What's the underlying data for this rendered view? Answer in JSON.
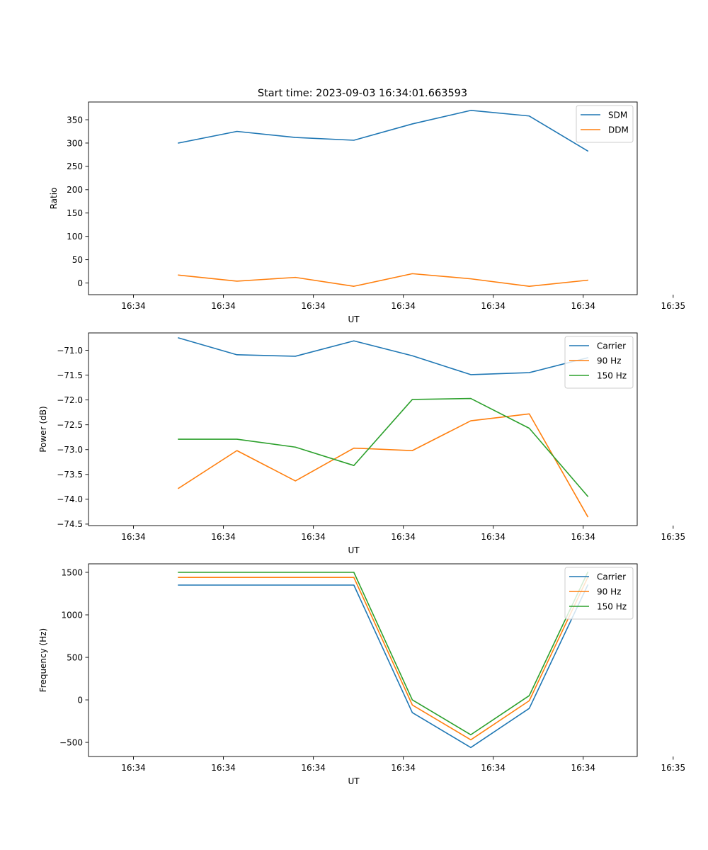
{
  "figure_title": "Start time: 2023-09-03 16:34:01.663593",
  "colors": {
    "c0": "#1f77b4",
    "c1": "#ff7f0e",
    "c2": "#2ca02c"
  },
  "chart_data": [
    {
      "type": "line",
      "id": "ratio",
      "title": "Start time: 2023-09-03 16:34:01.663593",
      "xlabel": "UT",
      "ylabel": "Ratio",
      "xlim": [
        -0.5,
        5.6
      ],
      "ylim": [
        -25,
        388
      ],
      "x_ticks": [
        0,
        1,
        2,
        3,
        4,
        5,
        6
      ],
      "x_tick_labels": [
        "16:34",
        "16:34",
        "16:34",
        "16:34",
        "16:34",
        "16:34",
        "16:35"
      ],
      "y_ticks": [
        0,
        50,
        100,
        150,
        200,
        250,
        300,
        350
      ],
      "y_tick_labels": [
        "0",
        "50",
        "100",
        "150",
        "200",
        "250",
        "300",
        "350"
      ],
      "x": [
        0.5,
        1.15,
        1.8,
        2.45,
        3.1,
        3.75,
        4.4,
        5.05
      ],
      "series": [
        {
          "name": "SDM",
          "color": "#1f77b4",
          "values": [
            300,
            325,
            312,
            306,
            341,
            370,
            358,
            283
          ]
        },
        {
          "name": "DDM",
          "color": "#ff7f0e",
          "values": [
            17,
            4,
            12,
            -7,
            20,
            9,
            -7,
            6
          ]
        }
      ],
      "legend": "top-right"
    },
    {
      "type": "line",
      "id": "power",
      "title": "",
      "xlabel": "UT",
      "ylabel": "Power (dB)",
      "xlim": [
        -0.5,
        5.6
      ],
      "ylim": [
        -74.53,
        -70.65
      ],
      "x_ticks": [
        0,
        1,
        2,
        3,
        4,
        5,
        6
      ],
      "x_tick_labels": [
        "16:34",
        "16:34",
        "16:34",
        "16:34",
        "16:34",
        "16:34",
        "16:35"
      ],
      "y_ticks": [
        -74.5,
        -74.0,
        -73.5,
        -73.0,
        -72.5,
        -72.0,
        -71.5,
        -71.0
      ],
      "y_tick_labels": [
        "−74.5",
        "−74.0",
        "−73.5",
        "−73.0",
        "−72.5",
        "−72.0",
        "−71.5",
        "−71.0"
      ],
      "x": [
        0.5,
        1.15,
        1.8,
        2.45,
        3.1,
        3.75,
        4.4,
        5.05
      ],
      "series": [
        {
          "name": "Carrier",
          "color": "#1f77b4",
          "values": [
            -70.75,
            -71.09,
            -71.12,
            -70.81,
            -71.11,
            -71.49,
            -71.45,
            -71.15
          ]
        },
        {
          "name": "90 Hz",
          "color": "#ff7f0e",
          "values": [
            -73.78,
            -73.02,
            -73.63,
            -72.97,
            -73.02,
            -72.42,
            -72.28,
            -74.35
          ]
        },
        {
          "name": "150 Hz",
          "color": "#2ca02c",
          "values": [
            -72.79,
            -72.79,
            -72.95,
            -73.32,
            -71.99,
            -71.97,
            -72.57,
            -73.94
          ]
        }
      ],
      "legend": "top-right"
    },
    {
      "type": "line",
      "id": "frequency",
      "title": "",
      "xlabel": "UT",
      "ylabel": "Frequency (Hz)",
      "xlim": [
        -0.5,
        5.6
      ],
      "ylim": [
        -666,
        1600
      ],
      "x_ticks": [
        0,
        1,
        2,
        3,
        4,
        5,
        6
      ],
      "x_tick_labels": [
        "16:34",
        "16:34",
        "16:34",
        "16:34",
        "16:34",
        "16:34",
        "16:35"
      ],
      "y_ticks": [
        -500,
        0,
        500,
        1000,
        1500
      ],
      "y_tick_labels": [
        "−500",
        "0",
        "500",
        "1000",
        "1500"
      ],
      "x": [
        0.5,
        1.15,
        1.8,
        2.45,
        3.1,
        3.75,
        4.4,
        5.05
      ],
      "series": [
        {
          "name": "Carrier",
          "color": "#1f77b4",
          "values": [
            1350,
            1350,
            1350,
            1350,
            -150,
            -560,
            -100,
            1350
          ]
        },
        {
          "name": "90 Hz",
          "color": "#ff7f0e",
          "values": [
            1440,
            1440,
            1440,
            1440,
            -60,
            -470,
            -10,
            1440
          ]
        },
        {
          "name": "150 Hz",
          "color": "#2ca02c",
          "values": [
            1500,
            1500,
            1500,
            1500,
            0,
            -410,
            50,
            1500
          ]
        }
      ],
      "legend": "top-right"
    }
  ]
}
